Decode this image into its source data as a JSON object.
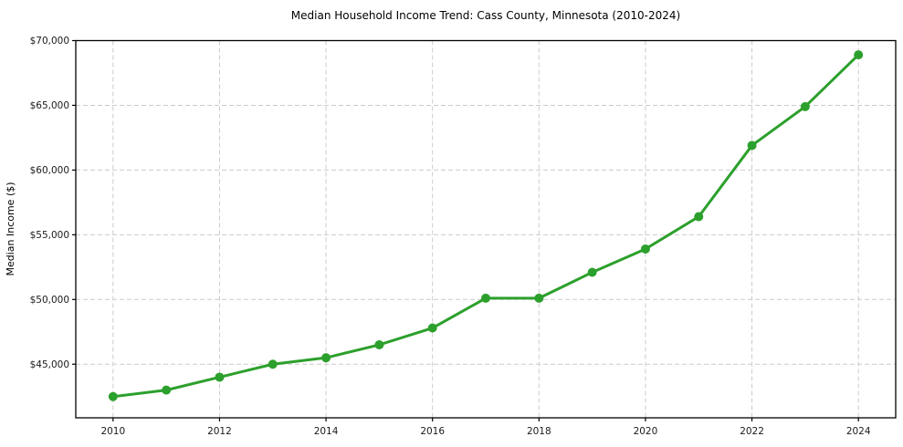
{
  "chart_data": {
    "type": "line",
    "title": "Median Household Income Trend: Cass County, Minnesota (2010-2024)",
    "xlabel": "",
    "ylabel": "Median Income ($)",
    "x": [
      2010,
      2011,
      2012,
      2013,
      2014,
      2015,
      2016,
      2017,
      2018,
      2019,
      2020,
      2021,
      2022,
      2023,
      2024
    ],
    "series": [
      {
        "name": "Median Household Income",
        "values": [
          42500,
          43000,
          44000,
          45000,
          45500,
          46500,
          47800,
          50100,
          50100,
          52100,
          53900,
          56400,
          61900,
          64900,
          68900
        ]
      }
    ],
    "ylim": [
      40860,
      70000
    ],
    "xlim": [
      2009.3,
      2024.7
    ],
    "yticks": {
      "values": [
        45000,
        50000,
        55000,
        60000,
        65000,
        70000
      ],
      "labels": [
        "$45,000",
        "$50,000",
        "$55,000",
        "$60,000",
        "$65,000",
        "$70,000"
      ]
    },
    "xticks": {
      "values": [
        2010,
        2012,
        2014,
        2016,
        2018,
        2020,
        2022,
        2024
      ],
      "labels": [
        "2010",
        "2012",
        "2014",
        "2016",
        "2018",
        "2020",
        "2022",
        "2024"
      ]
    },
    "grid": true,
    "legend_position": "none",
    "line_color": "#2ca02c",
    "marker_color": "#2ca02c",
    "grid_color": "#cccccc",
    "background_color": "#ffffff"
  }
}
